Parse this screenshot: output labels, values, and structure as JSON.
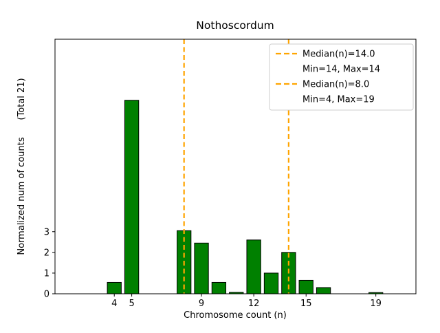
{
  "chart_data": {
    "type": "bar",
    "title": "Nothoscordum",
    "xlabel": "Chromosome count (n)",
    "ylabel": "Normalized num of counts      (Total 21)",
    "total_counts": 21,
    "bar_color": "#008000",
    "bar_edge_color": "#000000",
    "bar_width": 0.8,
    "x": [
      4,
      5,
      8,
      9,
      10,
      11,
      12,
      13,
      14,
      15,
      16,
      19
    ],
    "values": [
      0.55,
      9.35,
      3.05,
      2.45,
      0.55,
      0.07,
      2.6,
      1.0,
      2.0,
      0.65,
      0.3,
      0.06
    ],
    "xticks": [
      4,
      5,
      9,
      12,
      15,
      19
    ],
    "yticks": [
      0,
      1,
      2,
      3
    ],
    "xlim": [
      0.6,
      21.3
    ],
    "ylim": [
      0,
      12.3
    ],
    "grid": false,
    "vlines": [
      {
        "x": 14.0,
        "color": "#FFA500",
        "style": "dashed"
      },
      {
        "x": 8.0,
        "color": "#FFA500",
        "style": "dashed"
      }
    ],
    "legend": {
      "position": "upper right",
      "entries": [
        {
          "marker": "dashed-line",
          "color": "#FFA500",
          "label": "Median(n)=14.0"
        },
        {
          "marker": "none",
          "color": "",
          "label": "Min=14, Max=14"
        },
        {
          "marker": "dashed-line",
          "color": "#FFA500",
          "label": "Median(n)=8.0"
        },
        {
          "marker": "none",
          "color": "",
          "label": "Min=4, Max=19"
        }
      ]
    }
  }
}
